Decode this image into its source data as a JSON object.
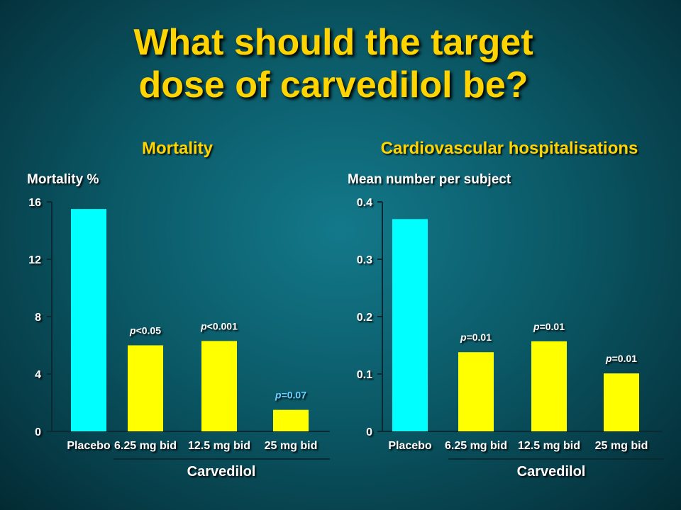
{
  "title": {
    "line1": "What should the target",
    "line2": "dose of carvedilol be?"
  },
  "colors": {
    "placebo": "#00ffff",
    "carvedilol": "#ffff00",
    "title": "#ffd400",
    "pvalue_nonsig": "#6ad0ff"
  },
  "chart_data": [
    {
      "type": "bar",
      "title": "Mortality",
      "ylabel": "Mortality %",
      "group_label": "Carvedilol",
      "categories": [
        "Placebo",
        "6.25 mg bid",
        "12.5 mg bid",
        "25 mg bid"
      ],
      "values": [
        15.5,
        6.0,
        6.3,
        1.5
      ],
      "ylim": [
        0,
        16
      ],
      "yticks": [
        "0",
        "4",
        "8",
        "12",
        "16"
      ],
      "p_values": [
        "",
        "p<0.05",
        "p<0.001",
        "p=0.07"
      ],
      "grid": false
    },
    {
      "type": "bar",
      "title": "Cardiovascular hospitalisations",
      "ylabel": "Mean number per subject",
      "group_label": "Carvedilol",
      "categories": [
        "Placebo",
        "6.25 mg bid",
        "12.5 mg bid",
        "25 mg bid"
      ],
      "values": [
        0.37,
        0.138,
        0.157,
        0.101
      ],
      "ylim": [
        0,
        0.4
      ],
      "yticks": [
        "0",
        "0.1",
        "0.2",
        "0.3",
        "0.4"
      ],
      "p_values": [
        "",
        "p=0.01",
        "p=0.01",
        "p=0.01"
      ],
      "grid": false
    }
  ]
}
